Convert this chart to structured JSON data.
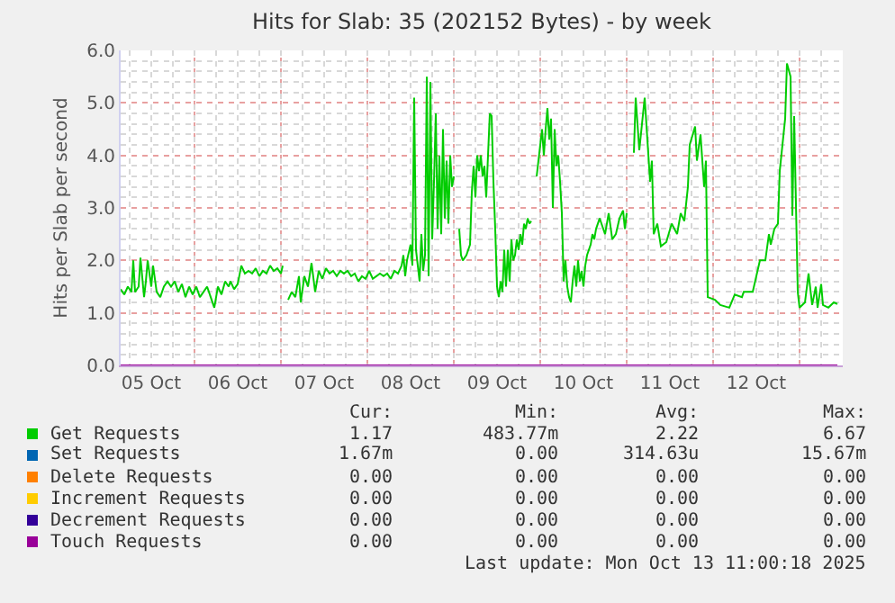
{
  "chart_data": {
    "type": "line",
    "title": "Hits for Slab: 35 (202152 Bytes) - by week",
    "ylabel": "Hits per Slab per second",
    "xlim": [
      "2025-10-05T03:30",
      "2025-10-13T12:00"
    ],
    "ylim": [
      0,
      6
    ],
    "yticks": [
      {
        "value": 0,
        "label": "0.0"
      },
      {
        "value": 1,
        "label": "1.0"
      },
      {
        "value": 2,
        "label": "2.0"
      },
      {
        "value": 3,
        "label": "3.0"
      },
      {
        "value": 4,
        "label": "4.0"
      },
      {
        "value": 5,
        "label": "5.0"
      },
      {
        "value": 6,
        "label": "6.0"
      }
    ],
    "xticks": [
      {
        "value": "2025-10-05T12:00",
        "label": "05 Oct"
      },
      {
        "value": "2025-10-06T12:00",
        "label": "06 Oct"
      },
      {
        "value": "2025-10-07T12:00",
        "label": "07 Oct"
      },
      {
        "value": "2025-10-08T12:00",
        "label": "08 Oct"
      },
      {
        "value": "2025-10-09T12:00",
        "label": "09 Oct"
      },
      {
        "value": "2025-10-10T12:00",
        "label": "10 Oct"
      },
      {
        "value": "2025-10-11T12:00",
        "label": "11 Oct"
      },
      {
        "value": "2025-10-12T12:00",
        "label": "12 Oct"
      }
    ],
    "grid": true,
    "legend": "bottom",
    "marker": "none",
    "line_style": "solid",
    "series": [
      {
        "name": "Get Requests",
        "color": "#00cc00",
        "x": [
          "2025-10-05T03:30",
          "2025-10-05T04:30",
          "2025-10-05T05:30",
          "2025-10-05T06:30",
          "2025-10-05T07:00",
          "2025-10-05T07:30",
          "2025-10-05T08:30",
          "2025-10-05T09:00",
          "2025-10-05T10:00",
          "2025-10-05T10:30",
          "2025-10-05T11:00",
          "2025-10-05T12:00",
          "2025-10-05T12:30",
          "2025-10-05T13:30",
          "2025-10-05T14:30",
          "2025-10-05T15:30",
          "2025-10-05T16:30",
          "2025-10-05T17:30",
          "2025-10-05T18:30",
          "2025-10-05T19:30",
          "2025-10-05T20:30",
          "2025-10-05T21:30",
          "2025-10-05T22:30",
          "2025-10-05T23:30",
          "2025-10-06T00:30",
          "2025-10-06T01:30",
          "2025-10-06T02:30",
          "2025-10-06T03:30",
          "2025-10-06T04:30",
          "2025-10-06T05:30",
          "2025-10-06T06:30",
          "2025-10-06T07:30",
          "2025-10-06T08:30",
          "2025-10-06T09:30",
          "2025-10-06T10:00",
          "2025-10-06T11:00",
          "2025-10-06T12:00",
          "2025-10-06T13:00",
          "2025-10-06T14:00",
          "2025-10-06T15:00",
          "2025-10-06T16:00",
          "2025-10-06T17:00",
          "2025-10-06T18:00",
          "2025-10-06T19:00",
          "2025-10-06T20:00",
          "2025-10-06T21:00",
          "2025-10-06T22:00",
          "2025-10-06T23:00",
          "2025-10-07T00:00",
          "2025-10-07T00:30",
          "2025-10-07T01:00",
          "2025-10-07T02:00",
          "2025-10-07T03:00",
          "2025-10-07T04:00",
          "2025-10-07T05:00",
          "2025-10-07T05:30",
          "2025-10-07T06:30",
          "2025-10-07T07:30",
          "2025-10-07T08:30",
          "2025-10-07T09:30",
          "2025-10-07T10:30",
          "2025-10-07T11:30",
          "2025-10-07T12:30",
          "2025-10-07T13:30",
          "2025-10-07T14:30",
          "2025-10-07T15:30",
          "2025-10-07T16:30",
          "2025-10-07T17:30",
          "2025-10-07T18:30",
          "2025-10-07T19:30",
          "2025-10-07T20:30",
          "2025-10-07T21:30",
          "2025-10-07T22:30",
          "2025-10-07T23:30",
          "2025-10-08T00:30",
          "2025-10-08T01:30",
          "2025-10-08T02:30",
          "2025-10-08T03:30",
          "2025-10-08T04:30",
          "2025-10-08T05:30",
          "2025-10-08T06:30",
          "2025-10-08T07:30",
          "2025-10-08T08:30",
          "2025-10-08T09:30",
          "2025-10-08T10:00",
          "2025-10-08T10:30",
          "2025-10-08T11:00",
          "2025-10-08T12:00",
          "2025-10-08T12:30",
          "2025-10-08T13:00",
          "2025-10-08T13:30",
          "2025-10-08T14:30",
          "2025-10-08T15:00",
          "2025-10-08T15:30",
          "2025-10-08T16:00",
          "2025-10-08T16:30",
          "2025-10-08T17:00",
          "2025-10-08T17:30",
          "2025-10-08T18:00",
          "2025-10-08T18:30",
          "2025-10-08T19:00",
          "2025-10-08T19:30",
          "2025-10-08T20:00",
          "2025-10-08T20:30",
          "2025-10-08T21:00",
          "2025-10-08T21:30",
          "2025-10-08T22:00",
          "2025-10-08T22:30",
          "2025-10-08T23:00",
          "2025-10-08T23:30",
          "2025-10-09T00:00",
          "2025-10-09T00:30",
          "2025-10-09T01:30",
          "2025-10-09T02:00",
          "2025-10-09T02:30",
          "2025-10-09T03:30",
          "2025-10-09T04:30",
          "2025-10-09T05:00",
          "2025-10-09T05:30",
          "2025-10-09T06:00",
          "2025-10-09T06:30",
          "2025-10-09T07:00",
          "2025-10-09T07:30",
          "2025-10-09T08:00",
          "2025-10-09T08:30",
          "2025-10-09T09:00",
          "2025-10-09T09:30",
          "2025-10-09T10:00",
          "2025-10-09T10:30",
          "2025-10-09T11:00",
          "2025-10-09T11:30",
          "2025-10-09T12:00",
          "2025-10-09T12:30",
          "2025-10-09T13:00",
          "2025-10-09T13:30",
          "2025-10-09T14:00",
          "2025-10-09T14:30",
          "2025-10-09T15:00",
          "2025-10-09T15:30",
          "2025-10-09T16:00",
          "2025-10-09T16:30",
          "2025-10-09T17:00",
          "2025-10-09T17:30",
          "2025-10-09T18:00",
          "2025-10-09T18:30",
          "2025-10-09T19:00",
          "2025-10-09T19:30",
          "2025-10-09T20:00",
          "2025-10-09T20:30",
          "2025-10-09T21:00",
          "2025-10-09T21:30",
          "2025-10-09T22:00",
          "2025-10-09T23:00",
          "2025-10-10T00:00",
          "2025-10-10T00:30",
          "2025-10-10T01:00",
          "2025-10-10T01:30",
          "2025-10-10T02:00",
          "2025-10-10T02:30",
          "2025-10-10T03:00",
          "2025-10-10T03:30",
          "2025-10-10T04:00",
          "2025-10-10T04:30",
          "2025-10-10T05:00",
          "2025-10-10T05:30",
          "2025-10-10T06:00",
          "2025-10-10T06:30",
          "2025-10-10T07:00",
          "2025-10-10T07:30",
          "2025-10-10T08:00",
          "2025-10-10T08:30",
          "2025-10-10T09:00",
          "2025-10-10T09:30",
          "2025-10-10T10:00",
          "2025-10-10T10:30",
          "2025-10-10T11:00",
          "2025-10-10T11:30",
          "2025-10-10T12:00",
          "2025-10-10T12:30",
          "2025-10-10T13:00",
          "2025-10-10T14:00",
          "2025-10-10T14:30",
          "2025-10-10T15:00",
          "2025-10-10T15:30",
          "2025-10-10T16:30",
          "2025-10-10T17:00",
          "2025-10-10T18:00",
          "2025-10-10T19:00",
          "2025-10-10T20:00",
          "2025-10-10T21:00",
          "2025-10-10T22:00",
          "2025-10-10T23:00",
          "2025-10-10T23:30",
          "2025-10-11T00:00",
          "2025-10-11T00:30",
          "2025-10-11T02:00",
          "2025-10-11T02:30",
          "2025-10-11T03:30",
          "2025-10-11T05:00",
          "2025-10-11T06:30",
          "2025-10-11T07:00",
          "2025-10-11T07:30",
          "2025-10-11T08:30",
          "2025-10-11T09:30",
          "2025-10-11T11:00",
          "2025-10-11T12:30",
          "2025-10-11T14:00",
          "2025-10-11T15:00",
          "2025-10-11T16:00",
          "2025-10-11T17:00",
          "2025-10-11T17:30",
          "2025-10-11T19:00",
          "2025-10-11T19:30",
          "2025-10-11T20:30",
          "2025-10-11T21:30",
          "2025-10-11T22:00",
          "2025-10-11T22:30",
          "2025-10-12T00:30",
          "2025-10-12T02:00",
          "2025-10-12T04:30",
          "2025-10-12T06:00",
          "2025-10-12T08:00",
          "2025-10-12T08:30",
          "2025-10-12T11:00",
          "2025-10-12T13:00",
          "2025-10-12T14:30",
          "2025-10-12T15:30",
          "2025-10-12T16:00",
          "2025-10-12T17:00",
          "2025-10-12T18:00",
          "2025-10-12T18:30",
          "2025-10-12T20:00",
          "2025-10-12T20:30",
          "2025-10-12T21:30",
          "2025-10-12T22:00",
          "2025-10-12T22:30",
          "2025-10-12T23:30",
          "2025-10-13T00:00",
          "2025-10-13T01:30",
          "2025-10-13T02:30",
          "2025-10-13T03:30",
          "2025-10-13T04:30",
          "2025-10-13T05:00",
          "2025-10-13T06:00",
          "2025-10-13T06:30",
          "2025-10-13T08:00",
          "2025-10-13T09:30",
          "2025-10-13T10:30"
        ],
        "values": [
          1.45,
          1.35,
          1.5,
          1.4,
          2.0,
          1.4,
          1.5,
          2.05,
          1.3,
          1.6,
          2.0,
          1.5,
          1.9,
          1.4,
          1.3,
          1.5,
          1.6,
          1.5,
          1.6,
          1.4,
          1.55,
          1.3,
          1.5,
          1.35,
          1.5,
          1.3,
          1.4,
          1.5,
          1.3,
          1.1,
          1.5,
          1.35,
          1.6,
          1.5,
          1.6,
          1.45,
          1.55,
          1.9,
          1.75,
          1.8,
          1.75,
          1.85,
          1.7,
          1.8,
          1.75,
          1.9,
          1.8,
          1.85,
          1.75,
          1.9,
          null,
          1.25,
          1.4,
          1.3,
          1.7,
          1.2,
          1.7,
          1.5,
          1.95,
          1.4,
          1.8,
          1.65,
          1.85,
          1.75,
          1.8,
          1.7,
          1.8,
          1.75,
          1.8,
          1.7,
          1.75,
          1.6,
          1.7,
          1.65,
          1.8,
          1.65,
          1.7,
          1.75,
          1.7,
          1.75,
          1.65,
          1.8,
          1.75,
          1.9,
          2.1,
          1.7,
          2.0,
          2.3,
          1.9,
          5.1,
          2.2,
          1.6,
          2.5,
          1.8,
          2.1,
          5.5,
          1.7,
          5.4,
          2.4,
          3.5,
          4.8,
          2.6,
          4.0,
          2.5,
          4.5,
          2.8,
          3.9,
          2.7,
          4.0,
          3.4,
          3.6,
          null,
          2.6,
          2.1,
          2.0,
          2.1,
          2.3,
          3.3,
          3.8,
          3.2,
          4.0,
          3.7,
          4.0,
          3.6,
          3.8,
          3.2,
          4.0,
          4.8,
          4.75,
          3.5,
          2.6,
          1.5,
          1.3,
          1.6,
          1.4,
          2.2,
          1.5,
          2.2,
          1.6,
          2.4,
          2.0,
          2.1,
          2.4,
          2.2,
          2.5,
          2.3,
          2.7,
          2.6,
          2.8,
          2.7,
          2.75,
          null,
          3.6,
          4.2,
          4.5,
          4.0,
          4.5,
          4.9,
          4.3,
          4.7,
          3.0,
          4.5,
          3.8,
          4.0,
          3.5,
          2.9,
          1.6,
          2.0,
          1.5,
          1.3,
          1.2,
          1.6,
          1.9,
          1.5,
          2.0,
          1.6,
          1.8,
          1.5,
          1.9,
          2.1,
          2.3,
          2.5,
          2.4,
          2.6,
          2.8,
          2.7,
          2.5,
          2.9,
          2.4,
          2.5,
          2.8,
          2.95,
          2.6,
          2.9,
          null,
          4.05,
          5.1,
          4.1,
          5.1,
          3.5,
          3.9,
          2.5,
          2.7,
          2.27,
          2.35,
          2.7,
          2.5,
          2.9,
          2.75,
          3.4,
          4.2,
          4.55,
          3.9,
          4.4,
          3.4,
          3.9,
          1.3,
          1.25,
          1.15,
          1.1,
          1.35,
          1.3,
          1.4,
          1.4,
          2.0,
          2.0,
          2.5,
          2.3,
          2.6,
          2.7,
          3.7,
          4.7,
          5.75,
          5.5,
          2.85,
          4.75,
          1.4,
          1.1,
          1.2,
          1.75,
          1.15,
          1.5,
          1.1,
          1.55,
          1.15,
          1.1,
          1.2,
          1.17
        ]
      },
      {
        "name": "Set Requests",
        "color": "#0066b3"
      },
      {
        "name": "Delete Requests",
        "color": "#ff8000"
      },
      {
        "name": "Increment Requests",
        "color": "#ffcc00"
      },
      {
        "name": "Decrement Requests",
        "color": "#330099"
      },
      {
        "name": "Touch Requests",
        "color": "#990099",
        "x": [
          "2025-10-05T03:30",
          "2025-10-13T10:30"
        ],
        "values": [
          0,
          0
        ]
      }
    ],
    "annotations": [
      "Cur:",
      "Min:",
      "Avg:",
      "Max:",
      "1.17",
      "483.77m",
      "2.22",
      "6.67",
      "1.67m",
      "0.00",
      "314.63u",
      "15.67m",
      "0.00",
      "0.00",
      "0.00",
      "0.00",
      "0.00",
      "0.00",
      "0.00",
      "0.00",
      "0.00",
      "0.00",
      "0.00",
      "0.00",
      "0.00",
      "0.00",
      "0.00",
      "0.00",
      "Last update: Mon Oct 13 11:00:18 2025"
    ]
  }
}
